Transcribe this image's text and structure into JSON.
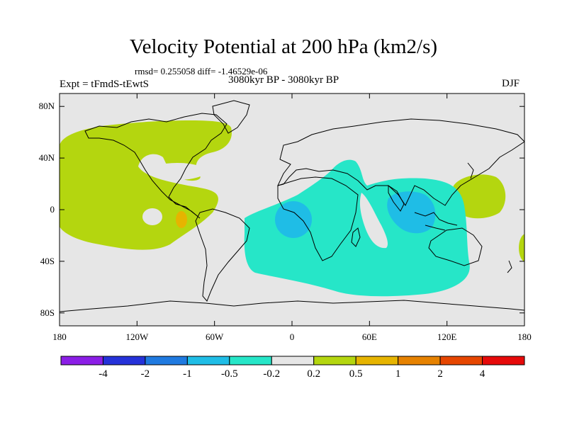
{
  "title": "Velocity Potential at 200 hPa (km2/s)",
  "stats": "rmsd= 0.255058 diff= -1.46529e-06",
  "experiment": "Expt = tFmdS-tEwtS",
  "period": "3080kyr BP - 3080kyr BP",
  "season": "DJF",
  "map": {
    "projection": "cylindrical equidistant",
    "lon_range": [
      -180,
      180
    ],
    "lat_range": [
      -90,
      90
    ],
    "y_ticks": [
      {
        "value": 80,
        "label": "80N"
      },
      {
        "value": 40,
        "label": "40N"
      },
      {
        "value": 0,
        "label": "0"
      },
      {
        "value": -40,
        "label": "40S"
      },
      {
        "value": -80,
        "label": "80S"
      }
    ],
    "x_ticks": [
      {
        "value": -180,
        "label": "180"
      },
      {
        "value": -120,
        "label": "120W"
      },
      {
        "value": -60,
        "label": "60W"
      },
      {
        "value": 0,
        "label": "0"
      },
      {
        "value": 60,
        "label": "60E"
      },
      {
        "value": 120,
        "label": "120E"
      },
      {
        "value": 180,
        "label": "180"
      }
    ],
    "colors": {
      "background": "#e6e6e6",
      "coastline": "#000000"
    }
  },
  "colorbar": {
    "colors": [
      "#8b1ee6",
      "#2532d9",
      "#1f7ae0",
      "#1fbde6",
      "#26e6c8",
      "#e6e6e6",
      "#b4d60f",
      "#e6b400",
      "#e68200",
      "#e64600",
      "#e60a0a"
    ],
    "labels": [
      "-4",
      "-2",
      "-1",
      "-0.5",
      "-0.2",
      "0.2",
      "0.5",
      "1",
      "2",
      "4"
    ]
  }
}
